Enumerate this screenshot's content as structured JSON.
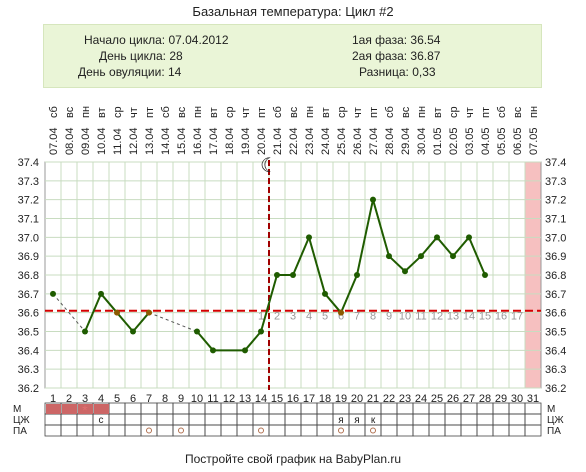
{
  "header": {
    "title": "Базальная температура: Цикл #2",
    "cycle_start": "Начало цикла: 07.04.2012",
    "cycle_length": "День цикла: 28",
    "ovulation_day": "День овуляции: 14",
    "phase1": "1ая фаза: 36.54",
    "phase2": "2ая фаза: 36.87",
    "difference": "Разница: 0,33"
  },
  "footer": {
    "text": "Постройте свой график на BabyPlan.ru"
  },
  "colors": {
    "line": "#1f5c00",
    "grid": "#c8dcc0",
    "coverline": "#d40000",
    "ovulation_line": "#a00000",
    "menstruation": "#cc6666",
    "highlight_column": "#f6c0c0",
    "phase_numbers": "#999999",
    "orange_point": "#8b5a00"
  },
  "chart_data": {
    "type": "line",
    "days": [
      1,
      2,
      3,
      4,
      5,
      6,
      7,
      8,
      9,
      10,
      11,
      12,
      13,
      14,
      15,
      16,
      17,
      18,
      19,
      20,
      21,
      22,
      23,
      24,
      25,
      26,
      27,
      28,
      29,
      30,
      31
    ],
    "weekdays": [
      "сб",
      "вс",
      "пн",
      "вт",
      "ср",
      "чт",
      "пт",
      "сб",
      "вс",
      "пн",
      "вт",
      "ср",
      "чт",
      "пт",
      "сб",
      "вс",
      "пн",
      "вт",
      "ср",
      "чт",
      "пт",
      "сб",
      "вс",
      "пн",
      "вт",
      "ср",
      "чт",
      "пт",
      "сб",
      "вс",
      "пн"
    ],
    "dates": [
      "07.04",
      "08.04",
      "09.04",
      "10.04",
      "11.04",
      "12.04",
      "13.04",
      "14.04",
      "15.04",
      "16.04",
      "17.04",
      "18.04",
      "19.04",
      "20.04",
      "21.04",
      "22.04",
      "23.04",
      "24.04",
      "25.04",
      "26.04",
      "27.04",
      "28.04",
      "29.04",
      "30.04",
      "01.05",
      "02.05",
      "03.05",
      "04.05",
      "05.05",
      "06.05",
      "07.05"
    ],
    "y_ticks": [
      "36.2",
      "36.3",
      "36.4",
      "36.5",
      "36.6",
      "36.7",
      "36.8",
      "36.9",
      "37.0",
      "37.1",
      "37.2",
      "37.3",
      "37.4"
    ],
    "ylim": [
      36.2,
      37.4
    ],
    "temperatures": [
      36.7,
      null,
      36.5,
      36.7,
      36.6,
      36.5,
      36.6,
      null,
      null,
      36.5,
      36.4,
      null,
      36.4,
      36.5,
      36.8,
      36.8,
      37.0,
      36.7,
      36.6,
      36.8,
      37.2,
      36.9,
      36.82,
      36.9,
      37.0,
      36.9,
      37.0,
      36.8,
      null,
      null,
      null
    ],
    "solid_segments": [
      [
        3,
        4
      ],
      [
        4,
        5
      ],
      [
        5,
        6
      ],
      [
        6,
        7
      ],
      [
        10,
        11
      ],
      [
        11,
        13
      ],
      [
        13,
        14
      ],
      [
        14,
        15
      ],
      [
        15,
        16
      ],
      [
        16,
        17
      ],
      [
        17,
        18
      ],
      [
        18,
        19
      ],
      [
        19,
        20
      ],
      [
        20,
        21
      ],
      [
        21,
        22
      ],
      [
        22,
        23
      ],
      [
        23,
        24
      ],
      [
        24,
        25
      ],
      [
        25,
        26
      ],
      [
        26,
        27
      ],
      [
        27,
        28
      ]
    ],
    "dashed_segments": [
      [
        1,
        3
      ],
      [
        7,
        10
      ]
    ],
    "orange_points": [
      5,
      7,
      19
    ],
    "coverline": 36.61,
    "ovulation_day": 14,
    "highlight_day": 31,
    "phase2_numbers": [
      "1",
      "2",
      "3",
      "4",
      "5",
      "6",
      "7",
      "8",
      "9",
      "10",
      "11",
      "12",
      "13",
      "14",
      "15",
      "16",
      "17"
    ],
    "phase2_start_day": 15,
    "moon_symbol": "☾"
  },
  "bottom_rows": {
    "labels": [
      "М",
      "ЦЖ",
      "ПА"
    ],
    "menstruation_days": [
      1,
      2,
      3,
      4
    ],
    "star_day": 3,
    "star_symbol": "*",
    "czh_marks": [
      {
        "day": 4,
        "text": "с"
      },
      {
        "day": 19,
        "text": "я"
      },
      {
        "day": 20,
        "text": "я"
      },
      {
        "day": 21,
        "text": "к"
      }
    ],
    "pa_marks": [
      7,
      9,
      14,
      19,
      21
    ]
  }
}
